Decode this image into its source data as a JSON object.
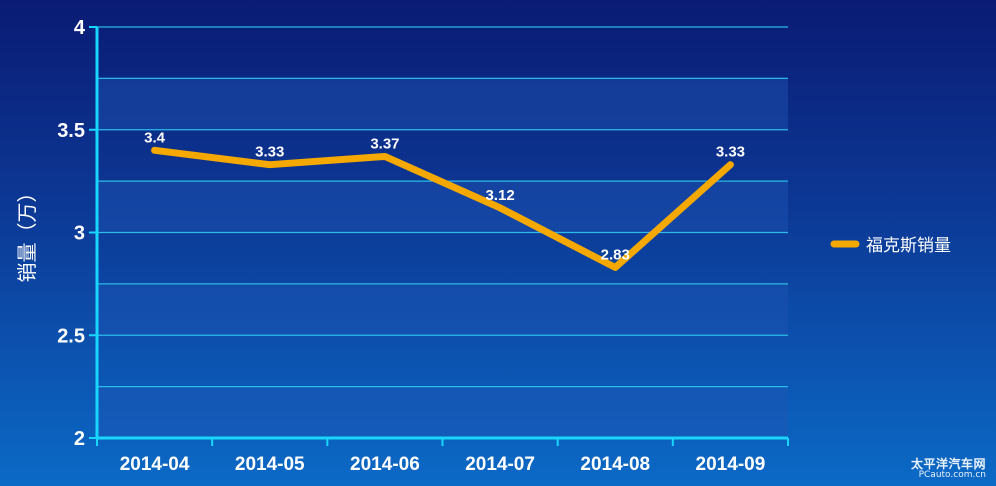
{
  "chart_data": {
    "type": "line",
    "title": "",
    "xlabel": "",
    "ylabel": "销量（万）",
    "categories": [
      "2014-04",
      "2014-05",
      "2014-06",
      "2014-07",
      "2014-08",
      "2014-09"
    ],
    "series": [
      {
        "name": "福克斯销量",
        "values": [
          3.4,
          3.33,
          3.37,
          3.12,
          2.83,
          3.33
        ],
        "color": "#f5a800"
      }
    ],
    "data_labels": [
      "3.4",
      "3.33",
      "3.37",
      "3.12",
      "2.83",
      "3.33"
    ],
    "ylim": [
      2,
      4
    ],
    "yticks": [
      2,
      2.5,
      3,
      3.5,
      4
    ],
    "ytick_labels": [
      "2",
      "2.5",
      "3",
      "3.5",
      "4"
    ],
    "grid": true,
    "legend_position": "right",
    "colors": {
      "axis": "#19d6ff",
      "grid": "#2fc6f2",
      "band": "#1e54b4",
      "text": "#ffffff",
      "line": "#f5a800"
    }
  },
  "watermark": {
    "line1": "太平洋汽车网",
    "line2": "PCauto.com.cn"
  }
}
